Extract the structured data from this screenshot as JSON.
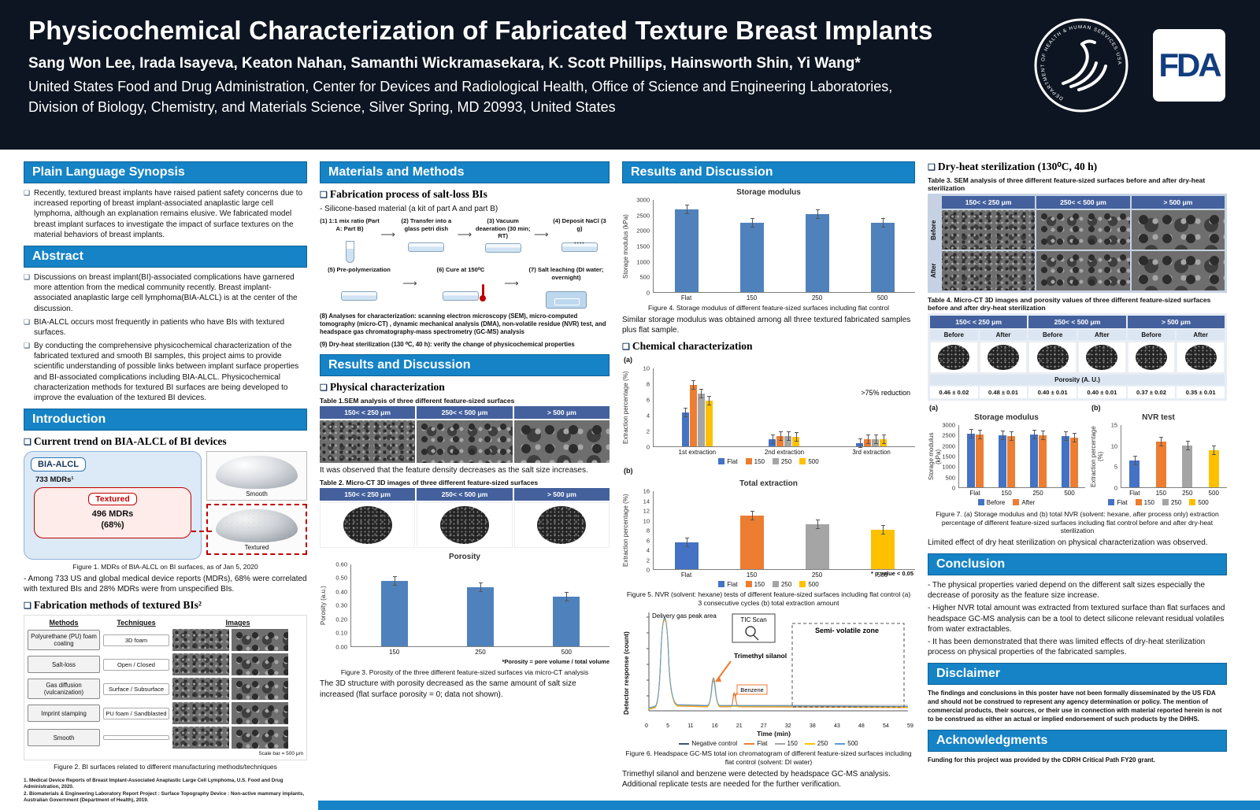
{
  "header": {
    "title": "Physicochemical Characterization of Fabricated Texture Breast Implants",
    "authors": "Sang Won Lee, Irada Isayeva, Keaton Nahan, Samanthi Wickramasekara, K. Scott Phillips, Hainsworth Shin, Yi Wang*",
    "affiliation1": "United States Food and Drug Administration, Center for Devices and Radiological Health, Office of Science and Engineering Laboratories,",
    "affiliation2": "Division of Biology, Chemistry, and Materials Science, Silver Spring, MD 20993, United States",
    "fda_logo_text": "FDA",
    "hhs_ring_text": "DEPARTMENT OF HEALTH & HUMAN SERVICES·USA"
  },
  "col1": {
    "synopsis_title": "Plain Language Synopsis",
    "synopsis_bullets": [
      "Recently, textured breast implants have raised patient safety concerns due to increased reporting of breast implant-associated anaplastic large cell lymphoma, although an explanation remains elusive. We fabricated model breast implant surfaces to investigate the impact of surface textures on the material behaviors of breast implants."
    ],
    "abstract_title": "Abstract",
    "abstract_bullets": [
      "Discussions on breast implant(BI)-associated complications have garnered more attention from the medical community recently. Breast implant-associated anaplastic large cell lymphoma(BIA-ALCL) is at the center of the discussion.",
      "BIA-ALCL occurs most frequently in patients who have BIs with textured surfaces.",
      "By conducting the comprehensive physicochemical characterization of the fabricated textured and smooth BI samples, this project aims to provide scientific understanding of possible links between implant surface properties and BI-associated complications including BIA-ALCL. Physicochemical characterization methods for textured BI surfaces are being developed to improve the evaluation of the textured BI devices."
    ],
    "intro_title": "Introduction",
    "trend_heading": "Current trend on BIA-ALCL of BI devices",
    "diagram": {
      "bia_alcl": "BIA-ALCL",
      "mdrs_total": "733 MDRs¹",
      "textured_label": "Textured",
      "mdrs_textured": "496 MDRs",
      "mdrs_pct": "(68%)",
      "smooth_caption": "Smooth",
      "textured_caption": "Textured"
    },
    "fig1_caption": "Figure 1. MDRs of BIA-ALCL on BI surfaces, as of Jan 5, 2020",
    "fig1_note": "- Among 733 US and global medical device reports (MDRs), 68% were correlated with textured BIs and 28% MDRs were from unspecified BIs.",
    "fab_heading": "Fabrication methods of textured BIs²",
    "methods_table": {
      "col_methods": "Methods",
      "col_techniques": "Techniques",
      "col_images": "Images",
      "rows": [
        {
          "method": "Polyurethane (PU) foam coating",
          "technique": "3D foam"
        },
        {
          "method": "Salt-loss",
          "technique": "Open / Closed"
        },
        {
          "method": "Gas diffusion (vulcanization)",
          "technique": "Surface / Subsurface"
        },
        {
          "method": "Imprint stamping",
          "technique": "PU foam / Sandblasted"
        },
        {
          "method": "Smooth",
          "technique": ""
        }
      ],
      "scale_note": "Scale bar = 500 μm"
    },
    "fig2_caption": "Figure 2. BI surfaces related to different manufacturing methods/techniques",
    "footnote1": "1. Medical Device Reports of Breast Implant-Associated Anaplastic Large Cell Lymphoma, U.S. Food and Drug Administration, 2020.",
    "footnote2": "2. Biomaterials & Engineering Laboratory Report Project : Surface Topography Device : Non-active mammary implants, Australian Government (Department of Health), 2019."
  },
  "col2": {
    "mm_title": "Materials and Methods",
    "fab_heading": "Fabrication process of salt-loss BIs",
    "material_line": "- Silicone-based material (a kit of part A and part B)",
    "steps1": [
      "(1) 1:1 mix ratio (Part A: Part B)",
      "(2) Transfer into a glass petri dish",
      "(3) Vacuum deaeration (30 min; RT)",
      "(4) Deposit NaCl (3 g)"
    ],
    "steps2": [
      "(5) Pre-polymerization",
      "(6) Cure at 150⁰C",
      "(7) Salt leaching (DI water; overnight)"
    ],
    "step8": "(8) Analyses for characterization: scanning electron microscopy (SEM), micro-computed tomography (micro-CT) , dynamic mechanical analysis (DMA), non-volatile residue (NVR) test, and headspace gas chromatography-mass spectrometry (GC-MS) analysis",
    "step9": "(9) Dry-heat sterilization (130 ⁰C, 40 h): verify the change of physicochemical properties",
    "rd_title": "Results and Discussion",
    "phys_heading": "Physical characterization",
    "table1_caption": "Table 1.SEM analysis of three different feature-sized surfaces",
    "obs1": "It was observed that the feature density decreases as the salt size increases.",
    "table2_caption": "Table 2. Micro-CT 3D images of three different feature-sized surfaces",
    "porosity_note": "*Porosity = pore volume / total volume",
    "fig3_caption": "Figure 3. Porosity of the three different feature-sized surfaces via micro-CT analysis",
    "obs2": "The 3D structure with porosity decreased as the same amount of salt size increased (flat surface porosity = 0; data not shown)."
  },
  "col3": {
    "rd_title": "Results and Discussion",
    "fig4_caption": "Figure 4. Storage modulus of different feature-sized surfaces including flat control",
    "fig4_note": "Similar storage modulus was obtained among all three textured fabricated samples plus flat sample.",
    "chem_heading": "Chemical characterization",
    "label_a": "(a)",
    "label_b": "(b)",
    "fig5_caption": "Figure 5. NVR (solvent: hexane) tests of different feature-sized surfaces including flat control (a) 3 consecutive cycles (b) total extraction amount",
    "gc": {
      "ylabel": "Detector response (count)",
      "xlabel": "Time (min)",
      "xticks": [
        "0",
        "5",
        "11",
        "16",
        "21",
        "27",
        "32",
        "38",
        "43",
        "48",
        "54",
        "59"
      ],
      "labels": {
        "delivery": "Delivery gas peak area",
        "tic": "TIC Scan",
        "semivolatile": "Semi- volatile zone",
        "silanol": "Trimethyl silanol",
        "benzene": "Benzene"
      },
      "legend": [
        {
          "label": "Negative control",
          "color": "#44546a"
        },
        {
          "label": "Flat",
          "color": "#ed7d31"
        },
        {
          "label": "150",
          "color": "#a5a5a5"
        },
        {
          "label": "250",
          "color": "#ffc000"
        },
        {
          "label": "500",
          "color": "#5b9bd5"
        }
      ]
    },
    "fig6_caption": "Figure 6. Headspace GC-MS total ion chromatogram of different feature-sized surfaces including flat control (solvent: DI water)",
    "fig6_note": "Trimethyl silanol and benzene were detected by headspace GC-MS analysis. Additional replicate tests are needed for the further verification."
  },
  "col4": {
    "dryheat_heading": "Dry-heat sterilization (130⁰C, 40 h)",
    "table3_caption": "Table 3. SEM analysis of three different feature-sized surfaces before and after dry-heat sterilization",
    "before_label": "Before",
    "after_label": "After",
    "table4_caption": "Table 4. Micro-CT 3D images and porosity values of three different feature-sized surfaces before and after dry-heat sterilization",
    "table4": {
      "sub_headers": [
        "Before",
        "After",
        "Before",
        "After",
        "Before",
        "After"
      ],
      "porosity_label": "Porosity (A. U.)",
      "porosity_values": [
        "0.46 ± 0.02",
        "0.48 ± 0.01",
        "0.40 ± 0.01",
        "0.40 ± 0.01",
        "0.37 ± 0.02",
        "0.35 ± 0.01"
      ]
    },
    "label_a": "(a)",
    "label_b": "(b)",
    "fig7_caption": "Figure 7. (a) Storage modulus and (b) total NVR (solvent: hexane, after process only) extraction percentage of different feature-sized surfaces including flat control before and after dry-heat sterilization",
    "fig7_note": "Limited effect of dry heat sterilization on physical characterization was observed.",
    "conclusion_title": "Conclusion",
    "conclusion_bullets": [
      "- The physical properties varied depend on the different salt sizes especially the decrease of porosity as the feature size increase.",
      "- Higher NVR total amount was extracted from textured surface than flat surfaces and headspace GC-MS analysis can be a tool to detect silicone relevant residual volatiles from water extractables.",
      "- It has been demonstrated that there was limited effects of dry-heat sterilization process on physical properties of the fabricated samples."
    ],
    "disclaimer_title": "Disclaimer",
    "disclaimer_text": "The findings and conclusions in this poster have not been formally disseminated by the US FDA and should not be construed to represent any agency determination or policy. The mention of commercial products, their sources, or their use in connection with material reported herein is not to be construed as either an actual or implied endorsement of such products by the DHHS.",
    "ack_title": "Acknowledgments",
    "ack_text": "Funding for this project was provided by the CDRH Critical Path FY20 grant."
  },
  "sizes": [
    "150< < 250 μm",
    "250< < 500 μm",
    "> 500 μm"
  ],
  "chart_data": {
    "porosity": {
      "type": "bar",
      "title": "Porosity",
      "ylabel": "Porosity (a.u.)",
      "categories": [
        "150",
        "250",
        "500"
      ],
      "values": [
        0.48,
        0.43,
        0.36
      ],
      "errors": [
        0.03,
        0.02,
        0.06
      ],
      "ylim": [
        0,
        0.6
      ],
      "yticks": [
        "0.00",
        "0.10",
        "0.20",
        "0.30",
        "0.40",
        "0.50",
        "0.60"
      ],
      "bar_color": "#4f81bd"
    },
    "storage": {
      "type": "bar",
      "title": "Storage modulus",
      "ylabel": "Storage modulus (kPa)",
      "categories": [
        "Flat",
        "150",
        "250",
        "500"
      ],
      "values": [
        2700,
        2250,
        2550,
        2250
      ],
      "errors": [
        180,
        220,
        130,
        160
      ],
      "ylim": [
        0,
        3000
      ],
      "yticks": [
        "0",
        "500",
        "1000",
        "1500",
        "2000",
        "2500",
        "3000"
      ],
      "bar_color": "#4f81bd"
    },
    "nvr_cycles": {
      "type": "grouped-bar",
      "ylabel": "Extraction percentage (%)",
      "categories": [
        "1st extraction",
        "2nd extraction",
        "3rd extraction"
      ],
      "series": [
        {
          "name": "Flat",
          "color": "#4472c4",
          "values": [
            4.3,
            0.9,
            0.4
          ]
        },
        {
          "name": "150",
          "color": "#ed7d31",
          "values": [
            7.9,
            1.3,
            0.9
          ]
        },
        {
          "name": "250",
          "color": "#a5a5a5",
          "values": [
            6.8,
            1.3,
            0.9
          ]
        },
        {
          "name": "500",
          "color": "#ffc000",
          "values": [
            5.9,
            1.2,
            0.9
          ]
        }
      ],
      "ylim": [
        0,
        10
      ],
      "yticks": [
        "0",
        "2",
        "4",
        "6",
        "8",
        "10"
      ],
      "annotation": ">75% reduction",
      "legend": [
        {
          "label": "Flat",
          "color": "#4472c4"
        },
        {
          "label": "150",
          "color": "#ed7d31"
        },
        {
          "label": "250",
          "color": "#a5a5a5"
        },
        {
          "label": "500",
          "color": "#ffc000"
        }
      ]
    },
    "nvr_total": {
      "type": "bar",
      "title": "Total extraction",
      "ylabel": "Extraction percentage (%)",
      "categories": [
        "Flat",
        "150",
        "250",
        "500"
      ],
      "values": [
        5.5,
        11.0,
        9.2,
        8.1
      ],
      "errors": [
        0.5,
        1.2,
        0.8,
        0.9
      ],
      "ylim": [
        0,
        16
      ],
      "yticks": [
        "0",
        "2",
        "4",
        "6",
        "8",
        "10",
        "12",
        "14",
        "16"
      ],
      "colors": [
        "#4472c4",
        "#ed7d31",
        "#a5a5a5",
        "#ffc000"
      ],
      "legend": [
        {
          "label": "Flat",
          "color": "#4472c4"
        },
        {
          "label": "150",
          "color": "#ed7d31"
        },
        {
          "label": "250",
          "color": "#a5a5a5"
        },
        {
          "label": "500",
          "color": "#ffc000"
        }
      ],
      "note": "* p value < 0.05"
    },
    "fig7_storage": {
      "type": "grouped-bar",
      "title": "Storage modulus",
      "ylabel": "Storage modulus (kPa)",
      "categories": [
        "Flat",
        "150",
        "250",
        "500"
      ],
      "series": [
        {
          "name": "Before",
          "color": "#4472c4",
          "values": [
            2600,
            2500,
            2550,
            2450
          ]
        },
        {
          "name": "After",
          "color": "#ed7d31",
          "values": [
            2550,
            2450,
            2500,
            2400
          ]
        }
      ],
      "ylim": [
        0,
        3000
      ],
      "yticks": [
        "0",
        "500",
        "1000",
        "1500",
        "2000",
        "2500",
        "3000"
      ],
      "legend": [
        {
          "label": "Before",
          "color": "#4472c4"
        },
        {
          "label": "After",
          "color": "#ed7d31"
        }
      ]
    },
    "fig7_nvr": {
      "type": "bar",
      "title": "NVR test",
      "ylabel": "Extraction percentage (%)",
      "categories": [
        "Flat",
        "150",
        "250",
        "500"
      ],
      "values": [
        6.5,
        11.0,
        10.0,
        9.0
      ],
      "errors": [
        0.5,
        0.6,
        0.7,
        0.8
      ],
      "ylim": [
        0,
        15
      ],
      "yticks": [
        "0",
        "5",
        "10",
        "15"
      ],
      "colors": [
        "#4472c4",
        "#ed7d31",
        "#a5a5a5",
        "#ffc000"
      ],
      "legend": [
        {
          "label": "Flat",
          "color": "#4472c4"
        },
        {
          "label": "150",
          "color": "#ed7d31"
        },
        {
          "label": "250",
          "color": "#a5a5a5"
        },
        {
          "label": "500",
          "color": "#ffc000"
        }
      ]
    }
  }
}
